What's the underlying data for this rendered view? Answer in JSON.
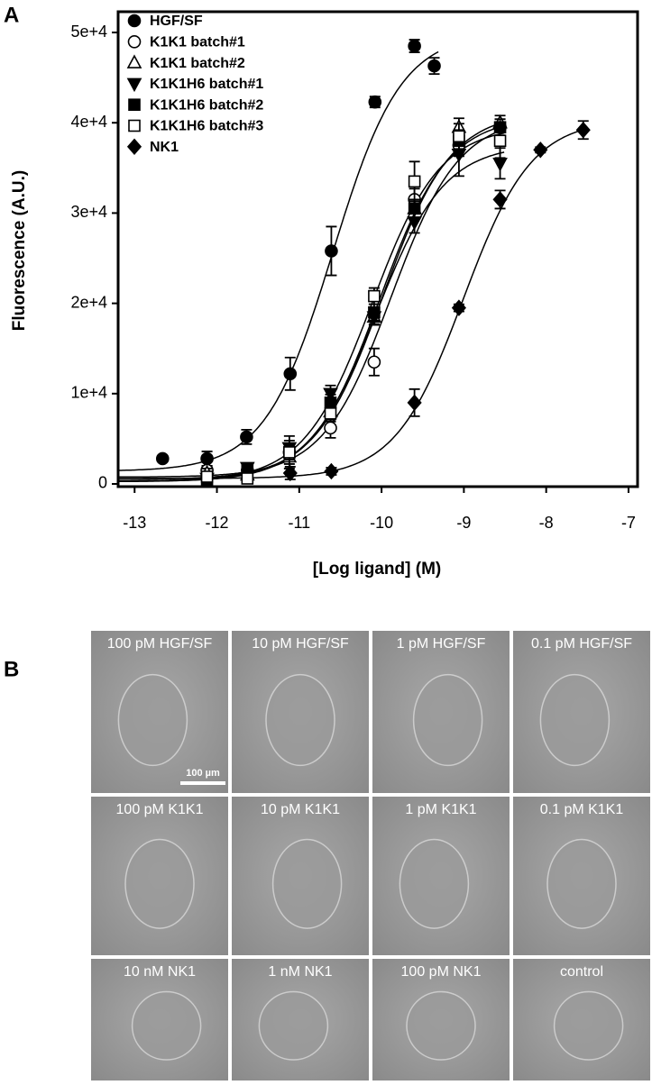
{
  "chart_data": {
    "type": "scatter",
    "panel_label": "A",
    "xlabel": "[Log ligand] (M)",
    "ylabel": "Fluorescence (A.U.)",
    "xlim": [
      -13.2,
      -6.89
    ],
    "ylim": [
      -300,
      52300
    ],
    "xticks": [
      -13,
      -12,
      -11,
      -10,
      -9,
      -8,
      -7
    ],
    "yticks": [
      0,
      {
        "value": 10000,
        "label": "1e+4"
      },
      {
        "value": 20000,
        "label": "2e+4"
      },
      {
        "value": 30000,
        "label": "3e+4"
      },
      {
        "value": 40000,
        "label": "4e+4"
      },
      {
        "value": 50000,
        "label": "5e+4"
      }
    ],
    "legend": "upper left",
    "series": [
      {
        "name": "HGF/SF",
        "color": "#000000",
        "marker": "circle",
        "filled": true,
        "x": [
          -12.66,
          -12.12,
          -11.64,
          -11.11,
          -10.61,
          -10.08,
          -9.6,
          -9.36
        ],
        "values": [
          2800,
          2800,
          5200,
          12200,
          25800,
          42300,
          48500,
          46300
        ],
        "errors": [
          300,
          800,
          800,
          1800,
          2700,
          600,
          700,
          900
        ]
      },
      {
        "name": "K1K1 batch#1",
        "color": "#000000",
        "marker": "circle",
        "filled": false,
        "x": [
          -12.12,
          -11.63,
          -11.12,
          -10.62,
          -10.09,
          -9.6,
          -9.06,
          -8.56
        ],
        "values": [
          1500,
          1500,
          3500,
          6200,
          13500,
          31500,
          37500,
          39500
        ],
        "errors": [
          500,
          500,
          900,
          1100,
          1500,
          1200,
          1200,
          900
        ]
      },
      {
        "name": "K1K1 batch#2",
        "color": "#000000",
        "marker": "triangle",
        "filled": false,
        "x": [
          -12.12,
          -11.63,
          -11.12,
          -10.62,
          -10.09,
          -9.6,
          -9.06,
          -8.56
        ],
        "values": [
          1200,
          1000,
          3000,
          8000,
          18500,
          30500,
          39500,
          40000
        ],
        "errors": [
          500,
          500,
          800,
          900,
          800,
          1000,
          1000,
          800
        ]
      },
      {
        "name": "K1K1H6 batch#1",
        "color": "#000000",
        "marker": "triangle-down",
        "filled": true,
        "x": [
          -12.12,
          -11.63,
          -11.12,
          -10.62,
          -10.09,
          -9.6,
          -9.06,
          -8.56
        ],
        "values": [
          600,
          1800,
          4000,
          10000,
          18500,
          29000,
          36500,
          35500
        ],
        "errors": [
          400,
          500,
          800,
          900,
          900,
          1200,
          2400,
          1700
        ]
      },
      {
        "name": "K1K1H6 batch#2",
        "color": "#000000",
        "marker": "square",
        "filled": true,
        "x": [
          -12.12,
          -11.63,
          -11.12,
          -10.62,
          -10.09,
          -9.6,
          -9.06,
          -8.56
        ],
        "values": [
          500,
          1500,
          3500,
          9000,
          19000,
          30500,
          38000,
          39500
        ],
        "errors": [
          400,
          500,
          800,
          900,
          900,
          1000,
          1200,
          900
        ]
      },
      {
        "name": "K1K1H6 batch#3",
        "color": "#000000",
        "marker": "square",
        "filled": false,
        "x": [
          -12.12,
          -11.63,
          -11.12,
          -10.62,
          -10.09,
          -9.6,
          -9.06,
          -8.56
        ],
        "values": [
          800,
          600,
          3500,
          7800,
          20800,
          33500,
          38500,
          38000
        ],
        "errors": [
          400,
          400,
          1800,
          900,
          900,
          2200,
          1400,
          1900
        ]
      },
      {
        "name": "NK1",
        "color": "#000000",
        "marker": "diamond",
        "filled": true,
        "x": [
          -11.11,
          -10.61,
          -9.6,
          -9.06,
          -8.56,
          -8.07,
          -7.55
        ],
        "values": [
          1200,
          1400,
          9000,
          19500,
          31500,
          37000,
          39200
        ],
        "errors": [
          700,
          400,
          1500,
          400,
          1000,
          300,
          1000
        ]
      }
    ]
  },
  "micrographs": {
    "panel_label": "B",
    "scale_bar": "100 µm",
    "labels": [
      "100 pM HGF/SF",
      "10 pM HGF/SF",
      "1 pM HGF/SF",
      "0.1 pM HGF/SF",
      "100 pM K1K1",
      "10 pM K1K1",
      "1 pM K1K1",
      "0.1 pM K1K1",
      "10 nM NK1",
      "1 nM NK1",
      "100 pM NK1",
      "control"
    ]
  }
}
